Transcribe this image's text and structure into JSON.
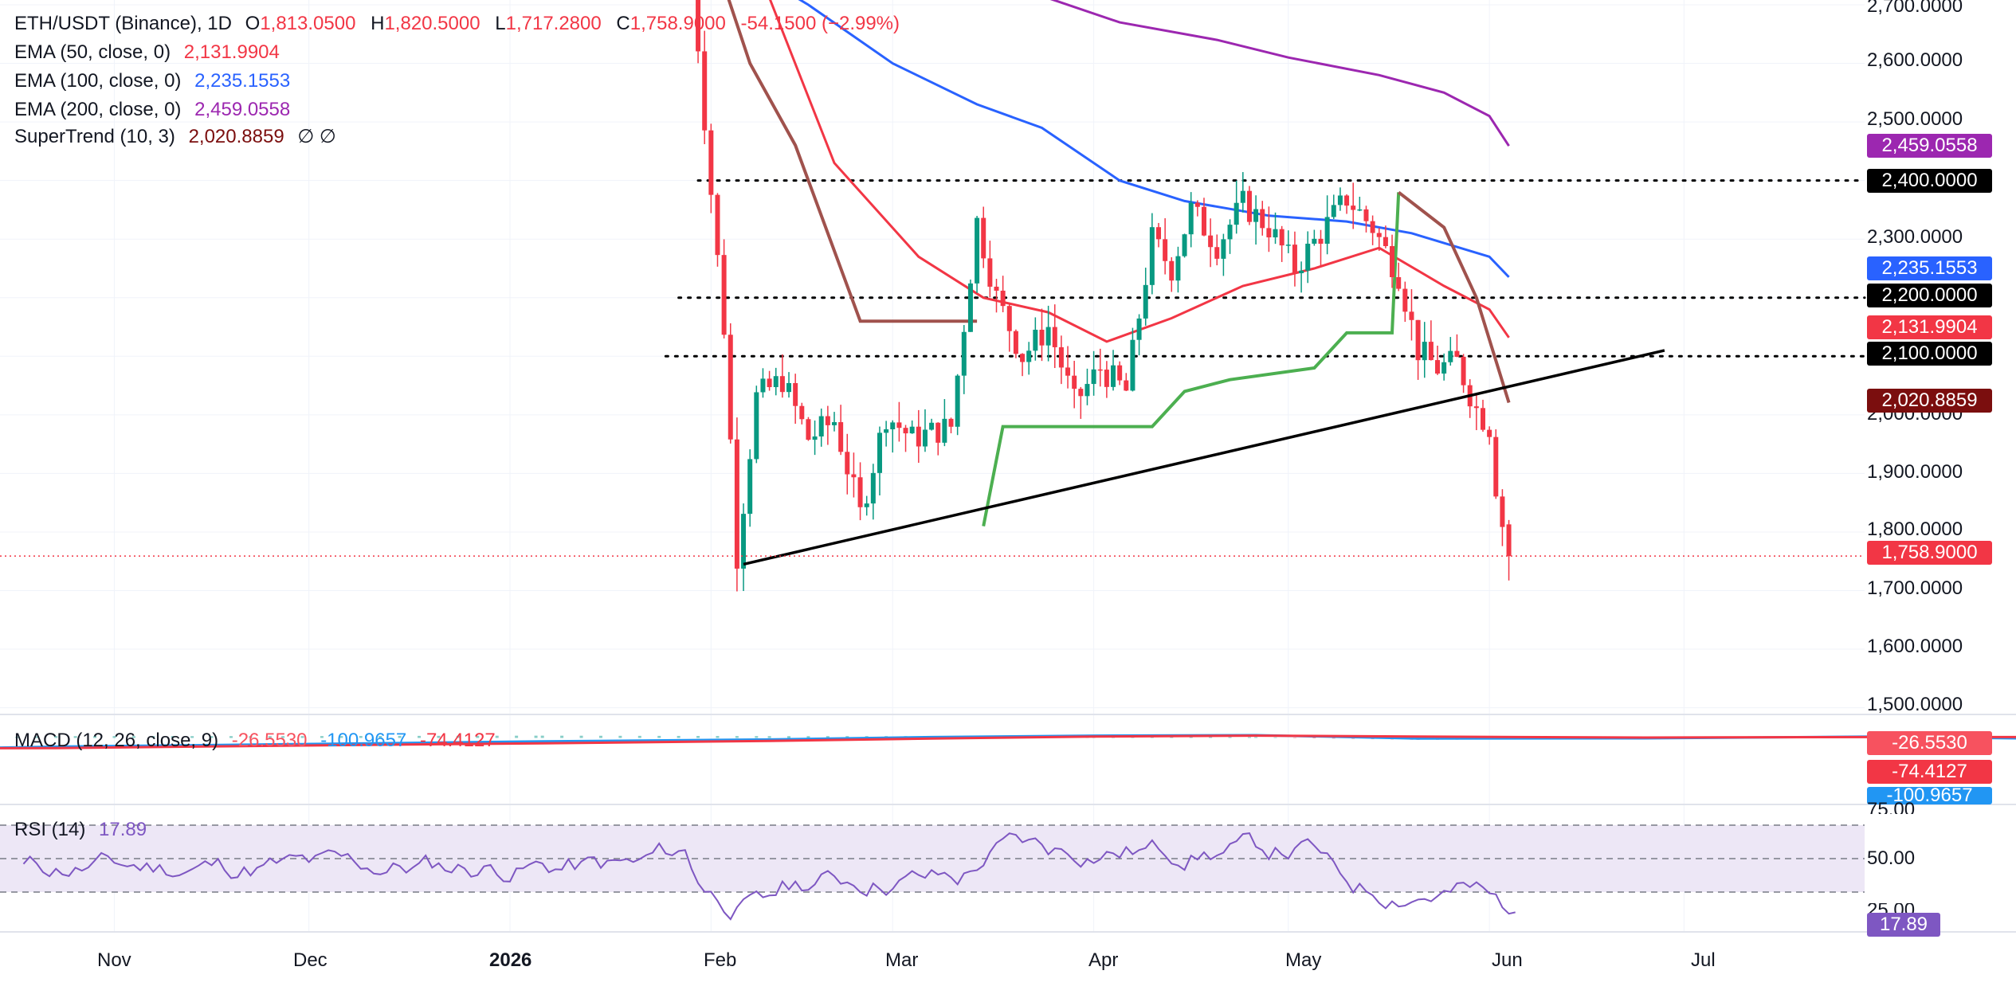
{
  "legend": {
    "symbol": "ETH/USDT (Binance), 1D",
    "o_label": "O",
    "o_value": "1,813.0500",
    "h_label": "H",
    "h_value": "1,820.5000",
    "l_label": "L",
    "l_value": "1,717.2800",
    "c_label": "C",
    "c_value": "1,758.9000",
    "change": "-54.1500 (−2.99%)",
    "ema50_label": "EMA (50, close, 0)",
    "ema50_value": "2,131.9904",
    "ema100_label": "EMA (100, close, 0)",
    "ema100_value": "2,235.1553",
    "ema200_label": "EMA (200, close, 0)",
    "ema200_value": "2,459.0558",
    "st_label": "SuperTrend (10, 3)",
    "st_value": "2,020.8859",
    "st_extra": "∅  ∅"
  },
  "macd_legend": {
    "label": "MACD (12, 26, close, 9)",
    "v1": "-26.5530",
    "v2": "-100.9657",
    "v3": "-74.4127"
  },
  "rsi_legend": {
    "label": "RSI (14)",
    "value": "17.89"
  },
  "price_axis_ticks": [
    "2,700.0000",
    "2,600.0000",
    "2,500.0000",
    "2,300.0000",
    "2,000.0000",
    "1,900.0000",
    "1,800.0000",
    "1,700.0000",
    "1,600.0000",
    "1,500.0000"
  ],
  "price_labels": [
    {
      "text": "2,459.0558",
      "color": "#9C27B0"
    },
    {
      "text": "2,400.0000",
      "color": "#000000"
    },
    {
      "text": "2,235.1553",
      "color": "#2962FF"
    },
    {
      "text": "2,200.0000",
      "color": "#000000"
    },
    {
      "text": "2,131.9904",
      "color": "#F23645"
    },
    {
      "text": "2,100.0000",
      "color": "#000000"
    },
    {
      "text": "2,020.8859",
      "color": "#7B0E0E"
    },
    {
      "text": "1,758.9000",
      "color": "#F23645"
    }
  ],
  "macd_labels": [
    {
      "text": "-26.5530",
      "color": "#F7525F"
    },
    {
      "text": "-74.4127",
      "color": "#F23645"
    },
    {
      "text": "-100.9657",
      "color": "#2196F3"
    }
  ],
  "rsi_axis_ticks": [
    "75.00",
    "50.00",
    "25.00"
  ],
  "rsi_label": {
    "text": "17.89",
    "color": "#7E57C2"
  },
  "time_axis": [
    "Nov",
    "Dec",
    "2026",
    "Feb",
    "Mar",
    "Apr",
    "May",
    "Jun",
    "Jul"
  ],
  "colors": {
    "up": "#089981",
    "down": "#F23645",
    "ema50": "#F23645",
    "ema100": "#2962FF",
    "ema200": "#9C27B0",
    "st_down": "#A0524D",
    "st_up": "#4CAF50",
    "macd": "#2196F3",
    "signal": "#F23645",
    "rsi": "#7E57C2",
    "rsi_band": "#EDE7F6"
  },
  "chart_data": {
    "type": "candlestick",
    "symbol": "ETH/USDT",
    "timeframe": "1D",
    "price_range": [
      1480,
      2720
    ],
    "horizontal_levels": [
      2400,
      2200,
      2100
    ],
    "trendline": {
      "from": [
        "2026-02-06",
        1745
      ],
      "to": [
        "2026-06-28",
        2110
      ]
    },
    "last": {
      "open": 1813.05,
      "high": 1820.5,
      "low": 1717.28,
      "close": 1758.9,
      "change": -54.15,
      "change_pct": -2.99
    },
    "close_path": [
      [
        "2026-01-29",
        2760
      ],
      [
        "2026-02-01",
        2380
      ],
      [
        "2026-02-03",
        2150
      ],
      [
        "2026-02-05",
        1760
      ],
      [
        "2026-02-08",
        2030
      ],
      [
        "2026-02-12",
        2060
      ],
      [
        "2026-02-16",
        1960
      ],
      [
        "2026-02-20",
        1990
      ],
      [
        "2026-02-24",
        1830
      ],
      [
        "2026-02-28",
        2000
      ],
      [
        "2026-03-04",
        1960
      ],
      [
        "2026-03-10",
        1980
      ],
      [
        "2026-03-14",
        2330
      ],
      [
        "2026-03-17",
        2200
      ],
      [
        "2026-03-21",
        2100
      ],
      [
        "2026-03-25",
        2150
      ],
      [
        "2026-03-29",
        2020
      ],
      [
        "2026-04-02",
        2080
      ],
      [
        "2026-04-06",
        2040
      ],
      [
        "2026-04-10",
        2300
      ],
      [
        "2026-04-13",
        2250
      ],
      [
        "2026-04-16",
        2350
      ],
      [
        "2026-04-20",
        2290
      ],
      [
        "2026-04-24",
        2360
      ],
      [
        "2026-04-28",
        2320
      ],
      [
        "2026-05-02",
        2250
      ],
      [
        "2026-05-06",
        2310
      ],
      [
        "2026-05-10",
        2370
      ],
      [
        "2026-05-14",
        2320
      ],
      [
        "2026-05-18",
        2240
      ],
      [
        "2026-05-21",
        2110
      ],
      [
        "2026-05-24",
        2080
      ],
      [
        "2026-05-27",
        2090
      ],
      [
        "2026-05-30",
        2010
      ],
      [
        "2026-06-01",
        1980
      ],
      [
        "2026-06-02",
        1880
      ],
      [
        "2026-06-03",
        1813
      ],
      [
        "2026-06-04",
        1758.9
      ]
    ],
    "ema50_path": [
      [
        "2026-01-29",
        3050
      ],
      [
        "2026-02-20",
        2430
      ],
      [
        "2026-03-05",
        2270
      ],
      [
        "2026-03-15",
        2200
      ],
      [
        "2026-03-25",
        2175
      ],
      [
        "2026-04-03",
        2125
      ],
      [
        "2026-04-13",
        2165
      ],
      [
        "2026-04-24",
        2220
      ],
      [
        "2026-05-05",
        2250
      ],
      [
        "2026-05-15",
        2285
      ],
      [
        "2026-05-25",
        2220
      ],
      [
        "2026-06-01",
        2180
      ],
      [
        "2026-06-04",
        2131.99
      ]
    ],
    "ema100_path": [
      [
        "2025-12-30",
        3100
      ],
      [
        "2026-01-15",
        2950
      ],
      [
        "2026-02-01",
        2800
      ],
      [
        "2026-02-16",
        2700
      ],
      [
        "2026-03-01",
        2600
      ],
      [
        "2026-03-14",
        2530
      ],
      [
        "2026-03-24",
        2490
      ],
      [
        "2026-04-05",
        2400
      ],
      [
        "2026-04-15",
        2365
      ],
      [
        "2026-04-28",
        2340
      ],
      [
        "2026-05-10",
        2330
      ],
      [
        "2026-05-20",
        2310
      ],
      [
        "2026-06-01",
        2270
      ],
      [
        "2026-06-04",
        2235.16
      ]
    ],
    "ema200_path": [
      [
        "2026-03-20",
        2730
      ],
      [
        "2026-04-05",
        2670
      ],
      [
        "2026-04-20",
        2640
      ],
      [
        "2026-05-01",
        2610
      ],
      [
        "2026-05-15",
        2580
      ],
      [
        "2026-05-25",
        2550
      ],
      [
        "2026-06-01",
        2510
      ],
      [
        "2026-06-04",
        2459.06
      ]
    ],
    "supertrend_path": [
      [
        "2026-02-01",
        2800
      ],
      [
        "2026-02-07",
        2600
      ],
      [
        "2026-02-14",
        2460
      ],
      [
        "2026-02-24",
        2160
      ],
      [
        "2026-03-05",
        2160
      ],
      [
        "2026-03-14",
        2160
      ],
      [
        "2026-03-15",
        1810
      ],
      [
        "2026-03-18",
        1980
      ],
      [
        "2026-04-01",
        1980
      ],
      [
        "2026-04-10",
        1980
      ],
      [
        "2026-04-15",
        2040
      ],
      [
        "2026-04-22",
        2060
      ],
      [
        "2026-05-05",
        2080
      ],
      [
        "2026-05-10",
        2140
      ],
      [
        "2026-05-17",
        2140
      ],
      [
        "2026-05-18",
        2380
      ],
      [
        "2026-05-25",
        2320
      ],
      [
        "2026-05-30",
        2200
      ],
      [
        "2026-06-04",
        2020.89
      ]
    ],
    "macd": {
      "macd": -100.9657,
      "signal": -74.4127,
      "histogram": -26.553
    },
    "rsi": {
      "period": 14,
      "value": 17.89,
      "levels": [
        70,
        50,
        30
      ]
    }
  }
}
